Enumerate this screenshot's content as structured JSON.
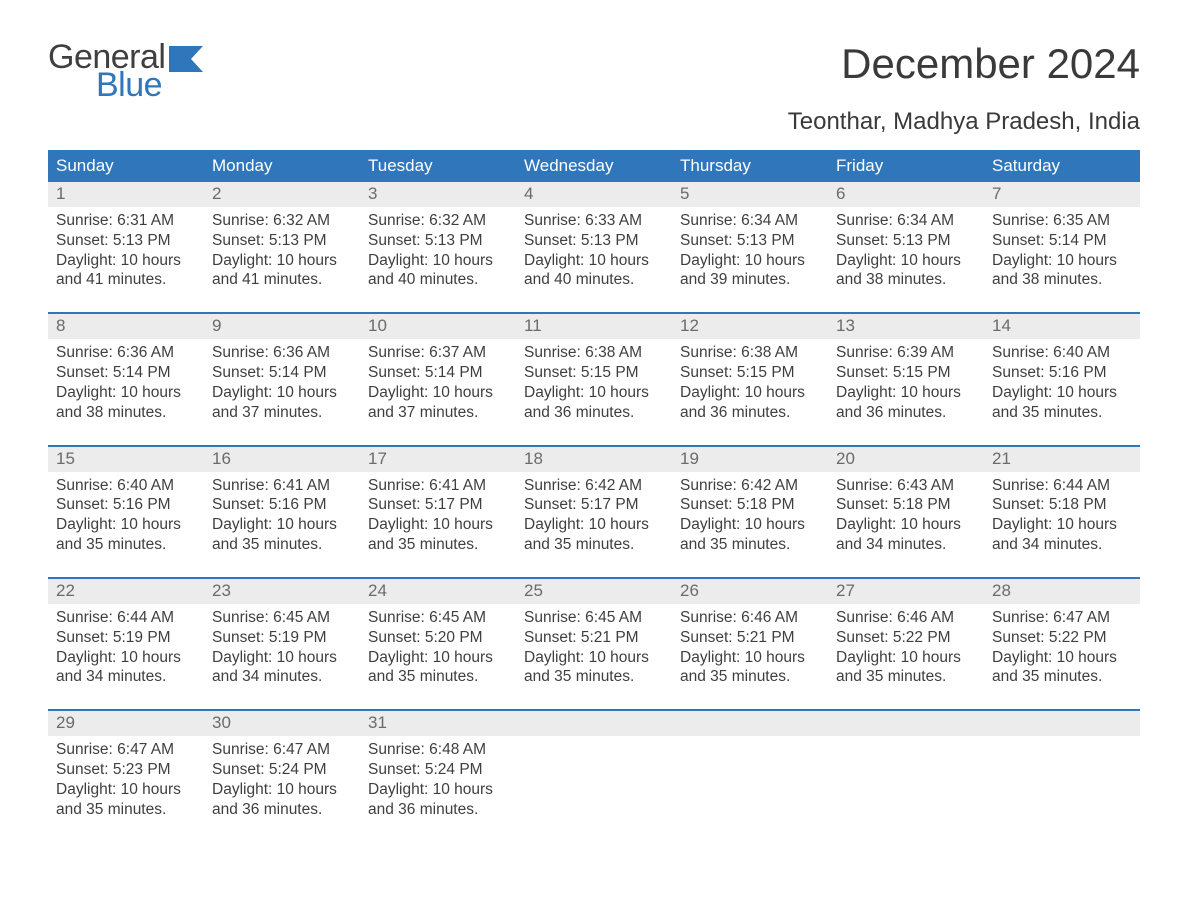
{
  "logo": {
    "word1": "General",
    "word2": "Blue",
    "word1_color": "#3f3f3f",
    "word2_color": "#2f76bb",
    "flag_color": "#2f76bb"
  },
  "title": "December 2024",
  "subtitle": "Teonthar, Madhya Pradesh, India",
  "colors": {
    "header_bg": "#2f76bb",
    "header_text": "#ffffff",
    "daynum_bg": "#ececec",
    "daynum_text": "#6b6b6b",
    "body_text": "#3f3f3f",
    "separator": "#2f76bb",
    "background": "#ffffff"
  },
  "typography": {
    "title_fontsize": 42,
    "subtitle_fontsize": 24,
    "dow_fontsize": 17,
    "daynum_fontsize": 17,
    "cell_fontsize": 15.5,
    "font_family": "Arial"
  },
  "layout": {
    "columns": 7,
    "rows": 5,
    "first_day_column": 0
  },
  "days_of_week": [
    "Sunday",
    "Monday",
    "Tuesday",
    "Wednesday",
    "Thursday",
    "Friday",
    "Saturday"
  ],
  "weeks": [
    [
      {
        "num": "1",
        "sunrise": "Sunrise: 6:31 AM",
        "sunset": "Sunset: 5:13 PM",
        "d1": "Daylight: 10 hours",
        "d2": "and 41 minutes."
      },
      {
        "num": "2",
        "sunrise": "Sunrise: 6:32 AM",
        "sunset": "Sunset: 5:13 PM",
        "d1": "Daylight: 10 hours",
        "d2": "and 41 minutes."
      },
      {
        "num": "3",
        "sunrise": "Sunrise: 6:32 AM",
        "sunset": "Sunset: 5:13 PM",
        "d1": "Daylight: 10 hours",
        "d2": "and 40 minutes."
      },
      {
        "num": "4",
        "sunrise": "Sunrise: 6:33 AM",
        "sunset": "Sunset: 5:13 PM",
        "d1": "Daylight: 10 hours",
        "d2": "and 40 minutes."
      },
      {
        "num": "5",
        "sunrise": "Sunrise: 6:34 AM",
        "sunset": "Sunset: 5:13 PM",
        "d1": "Daylight: 10 hours",
        "d2": "and 39 minutes."
      },
      {
        "num": "6",
        "sunrise": "Sunrise: 6:34 AM",
        "sunset": "Sunset: 5:13 PM",
        "d1": "Daylight: 10 hours",
        "d2": "and 38 minutes."
      },
      {
        "num": "7",
        "sunrise": "Sunrise: 6:35 AM",
        "sunset": "Sunset: 5:14 PM",
        "d1": "Daylight: 10 hours",
        "d2": "and 38 minutes."
      }
    ],
    [
      {
        "num": "8",
        "sunrise": "Sunrise: 6:36 AM",
        "sunset": "Sunset: 5:14 PM",
        "d1": "Daylight: 10 hours",
        "d2": "and 38 minutes."
      },
      {
        "num": "9",
        "sunrise": "Sunrise: 6:36 AM",
        "sunset": "Sunset: 5:14 PM",
        "d1": "Daylight: 10 hours",
        "d2": "and 37 minutes."
      },
      {
        "num": "10",
        "sunrise": "Sunrise: 6:37 AM",
        "sunset": "Sunset: 5:14 PM",
        "d1": "Daylight: 10 hours",
        "d2": "and 37 minutes."
      },
      {
        "num": "11",
        "sunrise": "Sunrise: 6:38 AM",
        "sunset": "Sunset: 5:15 PM",
        "d1": "Daylight: 10 hours",
        "d2": "and 36 minutes."
      },
      {
        "num": "12",
        "sunrise": "Sunrise: 6:38 AM",
        "sunset": "Sunset: 5:15 PM",
        "d1": "Daylight: 10 hours",
        "d2": "and 36 minutes."
      },
      {
        "num": "13",
        "sunrise": "Sunrise: 6:39 AM",
        "sunset": "Sunset: 5:15 PM",
        "d1": "Daylight: 10 hours",
        "d2": "and 36 minutes."
      },
      {
        "num": "14",
        "sunrise": "Sunrise: 6:40 AM",
        "sunset": "Sunset: 5:16 PM",
        "d1": "Daylight: 10 hours",
        "d2": "and 35 minutes."
      }
    ],
    [
      {
        "num": "15",
        "sunrise": "Sunrise: 6:40 AM",
        "sunset": "Sunset: 5:16 PM",
        "d1": "Daylight: 10 hours",
        "d2": "and 35 minutes."
      },
      {
        "num": "16",
        "sunrise": "Sunrise: 6:41 AM",
        "sunset": "Sunset: 5:16 PM",
        "d1": "Daylight: 10 hours",
        "d2": "and 35 minutes."
      },
      {
        "num": "17",
        "sunrise": "Sunrise: 6:41 AM",
        "sunset": "Sunset: 5:17 PM",
        "d1": "Daylight: 10 hours",
        "d2": "and 35 minutes."
      },
      {
        "num": "18",
        "sunrise": "Sunrise: 6:42 AM",
        "sunset": "Sunset: 5:17 PM",
        "d1": "Daylight: 10 hours",
        "d2": "and 35 minutes."
      },
      {
        "num": "19",
        "sunrise": "Sunrise: 6:42 AM",
        "sunset": "Sunset: 5:18 PM",
        "d1": "Daylight: 10 hours",
        "d2": "and 35 minutes."
      },
      {
        "num": "20",
        "sunrise": "Sunrise: 6:43 AM",
        "sunset": "Sunset: 5:18 PM",
        "d1": "Daylight: 10 hours",
        "d2": "and 34 minutes."
      },
      {
        "num": "21",
        "sunrise": "Sunrise: 6:44 AM",
        "sunset": "Sunset: 5:18 PM",
        "d1": "Daylight: 10 hours",
        "d2": "and 34 minutes."
      }
    ],
    [
      {
        "num": "22",
        "sunrise": "Sunrise: 6:44 AM",
        "sunset": "Sunset: 5:19 PM",
        "d1": "Daylight: 10 hours",
        "d2": "and 34 minutes."
      },
      {
        "num": "23",
        "sunrise": "Sunrise: 6:45 AM",
        "sunset": "Sunset: 5:19 PM",
        "d1": "Daylight: 10 hours",
        "d2": "and 34 minutes."
      },
      {
        "num": "24",
        "sunrise": "Sunrise: 6:45 AM",
        "sunset": "Sunset: 5:20 PM",
        "d1": "Daylight: 10 hours",
        "d2": "and 35 minutes."
      },
      {
        "num": "25",
        "sunrise": "Sunrise: 6:45 AM",
        "sunset": "Sunset: 5:21 PM",
        "d1": "Daylight: 10 hours",
        "d2": "and 35 minutes."
      },
      {
        "num": "26",
        "sunrise": "Sunrise: 6:46 AM",
        "sunset": "Sunset: 5:21 PM",
        "d1": "Daylight: 10 hours",
        "d2": "and 35 minutes."
      },
      {
        "num": "27",
        "sunrise": "Sunrise: 6:46 AM",
        "sunset": "Sunset: 5:22 PM",
        "d1": "Daylight: 10 hours",
        "d2": "and 35 minutes."
      },
      {
        "num": "28",
        "sunrise": "Sunrise: 6:47 AM",
        "sunset": "Sunset: 5:22 PM",
        "d1": "Daylight: 10 hours",
        "d2": "and 35 minutes."
      }
    ],
    [
      {
        "num": "29",
        "sunrise": "Sunrise: 6:47 AM",
        "sunset": "Sunset: 5:23 PM",
        "d1": "Daylight: 10 hours",
        "d2": "and 35 minutes."
      },
      {
        "num": "30",
        "sunrise": "Sunrise: 6:47 AM",
        "sunset": "Sunset: 5:24 PM",
        "d1": "Daylight: 10 hours",
        "d2": "and 36 minutes."
      },
      {
        "num": "31",
        "sunrise": "Sunrise: 6:48 AM",
        "sunset": "Sunset: 5:24 PM",
        "d1": "Daylight: 10 hours",
        "d2": "and 36 minutes."
      },
      null,
      null,
      null,
      null
    ]
  ]
}
